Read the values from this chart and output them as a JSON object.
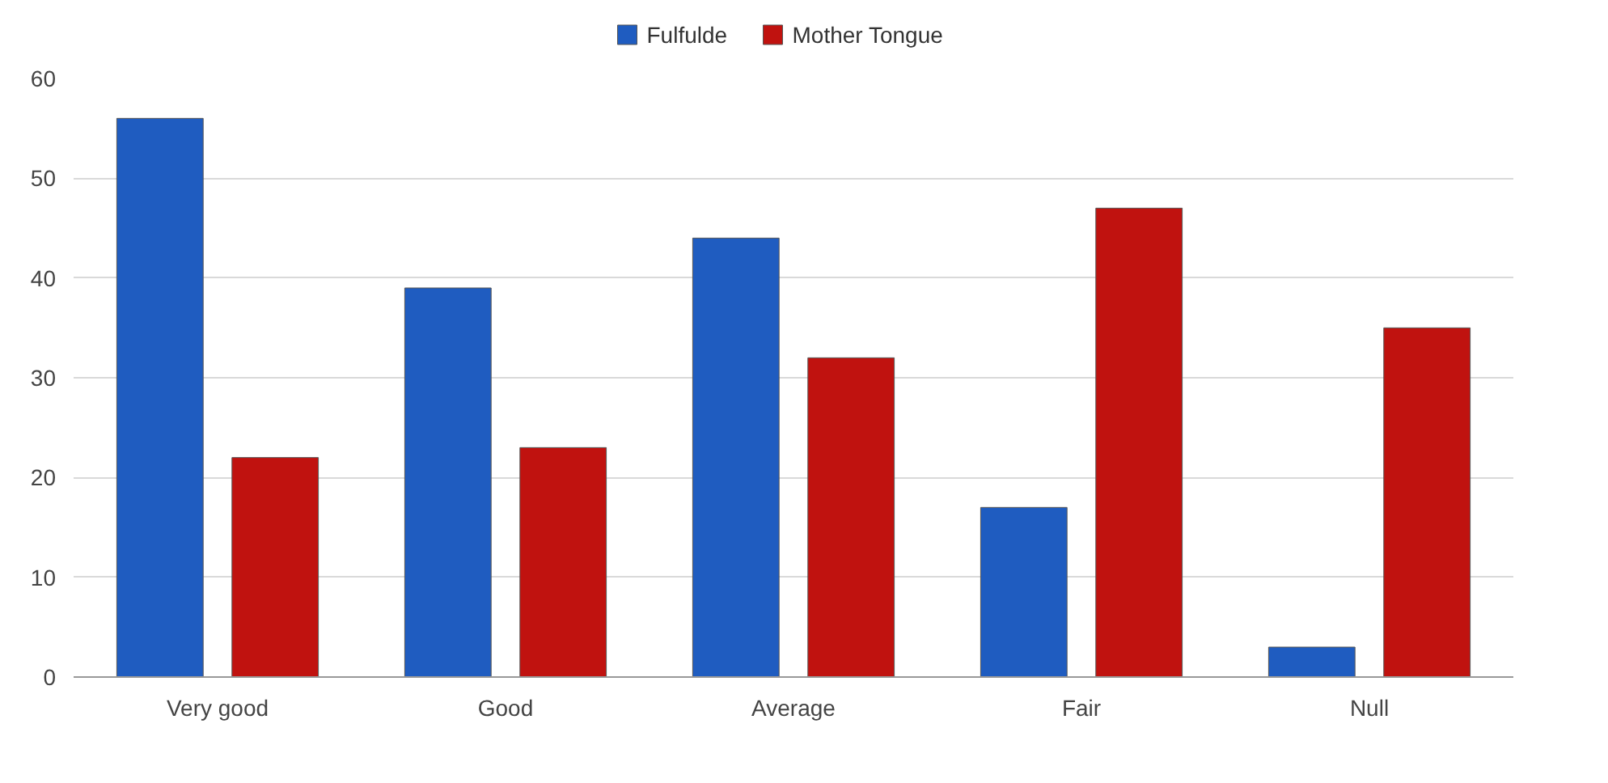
{
  "chart_data": {
    "type": "bar",
    "categories": [
      "Very good",
      "Good",
      "Average",
      "Fair",
      "Null"
    ],
    "series": [
      {
        "name": "Fulfulde",
        "color": "#1f5cc0",
        "values": [
          56,
          39,
          44,
          17,
          3
        ]
      },
      {
        "name": "Mother Tongue",
        "color": "#c0120f",
        "values": [
          22,
          23,
          32,
          47,
          35
        ]
      }
    ],
    "ylim": [
      0,
      60
    ],
    "yticks": [
      0,
      10,
      20,
      30,
      40,
      50,
      60
    ],
    "grid": "y",
    "legend": "top"
  }
}
